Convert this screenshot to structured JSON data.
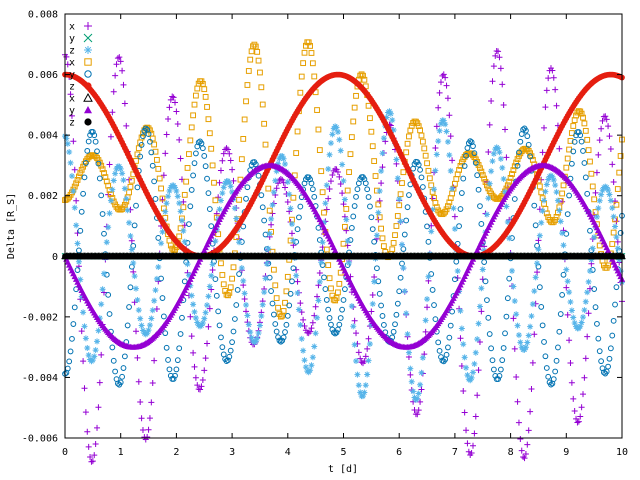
{
  "chart_data": {
    "type": "scatter",
    "title": "",
    "xlabel": "t [d]",
    "ylabel": "Delta [R_S]",
    "xlim": [
      0,
      10
    ],
    "ylim": [
      -0.006,
      0.008
    ],
    "grid": false,
    "legend_placement": "top-left",
    "x_ticks": [
      "0",
      "1",
      "2",
      "3",
      "4",
      "5",
      "6",
      "7",
      "8",
      "9",
      "10"
    ],
    "y_ticks": [
      "-0.006",
      "-0.004",
      "-0.002",
      "0",
      "0.002",
      "0.004",
      "0.006",
      "0.008"
    ],
    "series": [
      {
        "name": "x",
        "color": "#9400d3",
        "marker": "plus",
        "base": 0,
        "amp": 0.00465,
        "period": 0.97,
        "phase": 1.571,
        "env_amp": 0.00215,
        "env_period": 7.4,
        "env_phase": 1.2
      },
      {
        "name": "y",
        "color": "#009e73",
        "marker": "cross",
        "base": 0,
        "amp": 0,
        "period": 1,
        "phase": 0
      },
      {
        "name": "z",
        "color": "#56b4e9",
        "marker": "star",
        "base": 0,
        "amp": 0.00355,
        "period": 0.97,
        "phase": 1.571,
        "env_amp": 0.00125,
        "env_period": 7.4,
        "env_phase": 2.8
      },
      {
        "name": "x",
        "color": "#e69f00",
        "marker": "square",
        "base": 0.0026,
        "amp": 0.00265,
        "period": 0.97,
        "phase": 4.712,
        "env_amp": 0.00195,
        "env_period": 7.4,
        "env_phase": 4.5
      },
      {
        "name": "y",
        "color": "#0072b2",
        "marker": "circle",
        "base": 0,
        "amp": 0.0034,
        "period": 0.97,
        "phase": 4.712,
        "env_amp": 0.00085,
        "env_period": 7.4,
        "env_phase": 0.6
      },
      {
        "name": "z",
        "color": "#e51e10",
        "marker": "dot",
        "base": 0.003,
        "amp": 0.003,
        "period": 4.9,
        "phase": 1.571
      },
      {
        "name": "x",
        "color": "#000000",
        "marker": "triangle",
        "base": 0,
        "amp": 0,
        "period": 1,
        "phase": 0
      },
      {
        "name": "y",
        "color": "#9400d3",
        "marker": "triangle-fill",
        "base": 0,
        "amp": 0.003,
        "period": 4.9,
        "phase": 3.142
      },
      {
        "name": "z",
        "color": "#000000",
        "marker": "dot",
        "base": 0,
        "amp": 0,
        "period": 1,
        "phase": 0
      }
    ]
  }
}
